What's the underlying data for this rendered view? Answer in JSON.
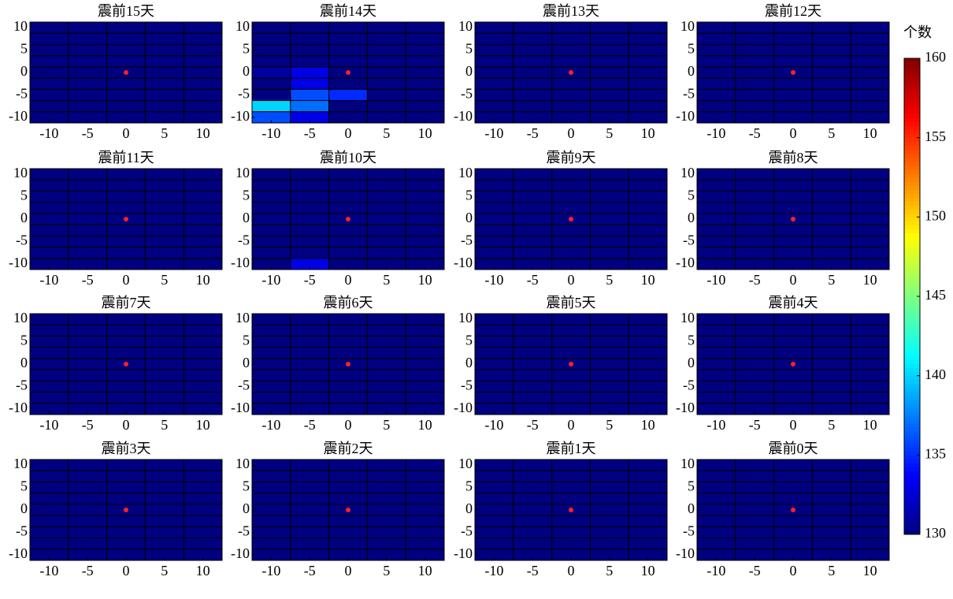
{
  "chart_data": {
    "type": "heatmap_grid",
    "x": [
      -10,
      -5,
      0,
      5,
      10
    ],
    "y": [
      10,
      7.5,
      5,
      2.5,
      0,
      -2.5,
      -5,
      -7.5,
      -10
    ],
    "xlim": [
      -12.5,
      12.5
    ],
    "ylim": [
      -11.25,
      11.25
    ],
    "xticks": [
      -10,
      -5,
      0,
      5,
      10
    ],
    "yticks": [
      10,
      5,
      0,
      -5,
      -10
    ],
    "colormap": "jet",
    "marker": {
      "x": 0,
      "y": 0,
      "color": "#ff2020"
    },
    "colorbar": {
      "label": "个数",
      "lim": [
        130,
        160
      ],
      "ticks": [
        130,
        135,
        140,
        145,
        150,
        155,
        160
      ]
    },
    "panels": [
      {
        "title": "震前15天",
        "z": [
          [
            130,
            130,
            130,
            130,
            130
          ],
          [
            130,
            130,
            130,
            130,
            130
          ],
          [
            130,
            130,
            130,
            130,
            130
          ],
          [
            130,
            130,
            130,
            130,
            130
          ],
          [
            130,
            130,
            130,
            130,
            130
          ],
          [
            130,
            130,
            130,
            130,
            130
          ],
          [
            130,
            130,
            130,
            130,
            130
          ],
          [
            130,
            130,
            130,
            130,
            130
          ],
          [
            130,
            130,
            130,
            130,
            130
          ]
        ]
      },
      {
        "title": "震前14天",
        "z": [
          [
            130,
            130,
            130,
            130,
            130
          ],
          [
            130,
            130,
            130,
            130,
            130
          ],
          [
            130,
            130,
            130,
            130,
            130
          ],
          [
            130,
            130,
            130,
            130,
            130
          ],
          [
            131,
            133,
            130,
            130,
            130
          ],
          [
            130,
            133,
            130,
            130,
            130
          ],
          [
            130,
            136,
            135,
            130,
            130
          ],
          [
            140,
            137,
            130,
            130,
            130
          ],
          [
            136,
            133,
            130,
            130,
            130
          ]
        ]
      },
      {
        "title": "震前13天",
        "z": [
          [
            130,
            130,
            130,
            130,
            130
          ],
          [
            130,
            130,
            130,
            130,
            130
          ],
          [
            130,
            130,
            130,
            130,
            130
          ],
          [
            130,
            130,
            130,
            130,
            130
          ],
          [
            130,
            130,
            130,
            130,
            130
          ],
          [
            130,
            130,
            130,
            130,
            130
          ],
          [
            130,
            130,
            130,
            130,
            130
          ],
          [
            130,
            130,
            130,
            130,
            130
          ],
          [
            130,
            130,
            130,
            130,
            130
          ]
        ]
      },
      {
        "title": "震前12天",
        "z": [
          [
            130,
            130,
            130,
            130,
            130
          ],
          [
            130,
            130,
            130,
            130,
            130
          ],
          [
            130,
            130,
            130,
            130,
            130
          ],
          [
            130,
            130,
            130,
            130,
            130
          ],
          [
            130,
            130,
            130,
            130,
            130
          ],
          [
            130,
            130,
            130,
            130,
            130
          ],
          [
            130,
            130,
            130,
            130,
            130
          ],
          [
            130,
            130,
            130,
            130,
            130
          ],
          [
            130,
            130,
            130,
            130,
            130
          ]
        ]
      },
      {
        "title": "震前11天",
        "z": [
          [
            130,
            130,
            130,
            130,
            130
          ],
          [
            130,
            130,
            130,
            130,
            130
          ],
          [
            130,
            130,
            130,
            130,
            130
          ],
          [
            130,
            130,
            130,
            130,
            130
          ],
          [
            130,
            130,
            130,
            130,
            130
          ],
          [
            130,
            130,
            130,
            130,
            130
          ],
          [
            130,
            130,
            130,
            130,
            130
          ],
          [
            130,
            130,
            130,
            130,
            130
          ],
          [
            130,
            130,
            130,
            130,
            130
          ]
        ]
      },
      {
        "title": "震前10天",
        "z": [
          [
            130,
            130,
            130,
            130,
            130
          ],
          [
            130,
            130,
            130,
            130,
            130
          ],
          [
            130,
            130,
            130,
            130,
            130
          ],
          [
            130,
            130,
            130,
            130,
            130
          ],
          [
            130,
            130,
            130,
            130,
            130
          ],
          [
            130,
            130,
            130,
            130,
            130
          ],
          [
            130,
            130,
            130,
            130,
            130
          ],
          [
            130,
            130,
            130,
            130,
            130
          ],
          [
            130,
            133,
            130,
            130,
            130
          ]
        ]
      },
      {
        "title": "震前9天",
        "z": [
          [
            130,
            130,
            130,
            130,
            130
          ],
          [
            130,
            130,
            130,
            130,
            130
          ],
          [
            130,
            130,
            130,
            130,
            130
          ],
          [
            130,
            130,
            130,
            130,
            130
          ],
          [
            130,
            130,
            130,
            130,
            130
          ],
          [
            130,
            130,
            130,
            130,
            130
          ],
          [
            130,
            130,
            130,
            130,
            130
          ],
          [
            130,
            130,
            130,
            130,
            130
          ],
          [
            130,
            130,
            130,
            130,
            130
          ]
        ]
      },
      {
        "title": "震前8天",
        "z": [
          [
            130,
            130,
            130,
            130,
            130
          ],
          [
            130,
            130,
            130,
            130,
            130
          ],
          [
            130,
            130,
            130,
            130,
            130
          ],
          [
            130,
            130,
            130,
            130,
            130
          ],
          [
            130,
            130,
            130,
            130,
            130
          ],
          [
            130,
            130,
            130,
            130,
            130
          ],
          [
            130,
            130,
            130,
            130,
            130
          ],
          [
            130,
            130,
            130,
            130,
            130
          ],
          [
            130,
            130,
            130,
            130,
            130
          ]
        ]
      },
      {
        "title": "震前7天",
        "z": [
          [
            130,
            130,
            130,
            130,
            130
          ],
          [
            130,
            130,
            130,
            130,
            130
          ],
          [
            130,
            130,
            130,
            130,
            130
          ],
          [
            130,
            130,
            130,
            130,
            130
          ],
          [
            130,
            130,
            130,
            130,
            130
          ],
          [
            130,
            130,
            130,
            130,
            130
          ],
          [
            130,
            130,
            130,
            130,
            130
          ],
          [
            130,
            130,
            130,
            130,
            130
          ],
          [
            130,
            130,
            130,
            130,
            130
          ]
        ]
      },
      {
        "title": "震前6天",
        "z": [
          [
            130,
            130,
            130,
            130,
            130
          ],
          [
            130,
            130,
            130,
            130,
            130
          ],
          [
            130,
            130,
            130,
            130,
            130
          ],
          [
            130,
            130,
            130,
            130,
            130
          ],
          [
            130,
            130,
            130,
            130,
            130
          ],
          [
            130,
            130,
            130,
            130,
            130
          ],
          [
            130,
            130,
            130,
            130,
            130
          ],
          [
            130,
            130,
            130,
            130,
            130
          ],
          [
            130,
            130,
            130,
            130,
            130
          ]
        ]
      },
      {
        "title": "震前5天",
        "z": [
          [
            130,
            130,
            130,
            130,
            130
          ],
          [
            130,
            130,
            130,
            130,
            130
          ],
          [
            130,
            130,
            130,
            130,
            130
          ],
          [
            130,
            130,
            130,
            130,
            130
          ],
          [
            130,
            130,
            130,
            130,
            130
          ],
          [
            130,
            130,
            130,
            130,
            130
          ],
          [
            130,
            130,
            130,
            130,
            130
          ],
          [
            130,
            130,
            130,
            130,
            130
          ],
          [
            130,
            130,
            130,
            130,
            130
          ]
        ]
      },
      {
        "title": "震前4天",
        "z": [
          [
            130,
            130,
            130,
            130,
            130
          ],
          [
            130,
            130,
            130,
            130,
            130
          ],
          [
            130,
            130,
            130,
            130,
            130
          ],
          [
            130,
            130,
            130,
            130,
            130
          ],
          [
            130,
            130,
            130,
            130,
            130
          ],
          [
            130,
            130,
            130,
            130,
            130
          ],
          [
            130,
            130,
            130,
            130,
            130
          ],
          [
            130,
            130,
            130,
            130,
            130
          ],
          [
            130,
            130,
            130,
            130,
            130
          ]
        ]
      },
      {
        "title": "震前3天",
        "z": [
          [
            130,
            130,
            130,
            130,
            130
          ],
          [
            130,
            130,
            130,
            130,
            130
          ],
          [
            130,
            130,
            130,
            130,
            130
          ],
          [
            130,
            130,
            130,
            130,
            130
          ],
          [
            130,
            130,
            130,
            130,
            130
          ],
          [
            130,
            130,
            130,
            130,
            130
          ],
          [
            130,
            130,
            130,
            130,
            130
          ],
          [
            130,
            130,
            130,
            130,
            130
          ],
          [
            130,
            130,
            130,
            130,
            130
          ]
        ]
      },
      {
        "title": "震前2天",
        "z": [
          [
            130,
            130,
            130,
            130,
            130
          ],
          [
            130,
            130,
            130,
            130,
            130
          ],
          [
            130,
            130,
            130,
            130,
            130
          ],
          [
            130,
            130,
            130,
            130,
            130
          ],
          [
            130,
            130,
            130,
            130,
            130
          ],
          [
            130,
            130,
            130,
            130,
            130
          ],
          [
            130,
            130,
            130,
            130,
            130
          ],
          [
            130,
            130,
            130,
            130,
            130
          ],
          [
            130,
            130,
            130,
            130,
            130
          ]
        ]
      },
      {
        "title": "震前1天",
        "z": [
          [
            130,
            130,
            130,
            130,
            130
          ],
          [
            130,
            130,
            130,
            130,
            130
          ],
          [
            130,
            130,
            130,
            130,
            130
          ],
          [
            130,
            130,
            130,
            130,
            130
          ],
          [
            130,
            130,
            130,
            130,
            130
          ],
          [
            130,
            130,
            130,
            130,
            130
          ],
          [
            130,
            130,
            130,
            130,
            130
          ],
          [
            130,
            130,
            130,
            130,
            130
          ],
          [
            130,
            130,
            130,
            130,
            130
          ]
        ]
      },
      {
        "title": "震前0天",
        "z": [
          [
            130,
            130,
            130,
            130,
            130
          ],
          [
            130,
            130,
            130,
            130,
            130
          ],
          [
            130,
            130,
            130,
            130,
            130
          ],
          [
            130,
            130,
            130,
            130,
            130
          ],
          [
            130,
            130,
            130,
            130,
            130
          ],
          [
            130,
            130,
            130,
            130,
            130
          ],
          [
            130,
            130,
            130,
            130,
            130
          ],
          [
            130,
            130,
            130,
            130,
            130
          ],
          [
            130,
            130,
            130,
            130,
            130
          ]
        ]
      }
    ]
  }
}
